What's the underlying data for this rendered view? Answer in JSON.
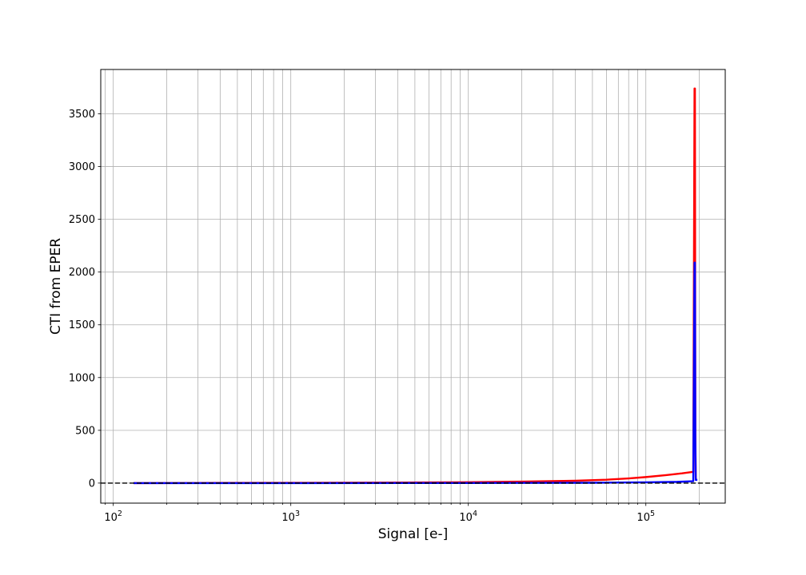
{
  "chart_data": {
    "type": "line",
    "title": "",
    "xlabel": "Signal [e-]",
    "ylabel": "CTI from EPER",
    "xscale": "log",
    "xlim": [
      85,
      280000
    ],
    "ylim": [
      -190,
      3920
    ],
    "grid": true,
    "grid_minor_x": true,
    "legend": "none",
    "x_major_ticks": [
      100,
      1000,
      10000,
      100000
    ],
    "x_tick_labels": [
      {
        "base": "10",
        "exp": "2"
      },
      {
        "base": "10",
        "exp": "3"
      },
      {
        "base": "10",
        "exp": "4"
      },
      {
        "base": "10",
        "exp": "5"
      }
    ],
    "y_ticks": [
      0,
      500,
      1000,
      1500,
      2000,
      2500,
      3000,
      3500
    ],
    "y_tick_labels": [
      "0",
      "500",
      "1000",
      "1500",
      "2000",
      "2500",
      "3000",
      "3500"
    ],
    "reference_line": {
      "y": 0,
      "style": "dashed",
      "color": "#000000"
    },
    "series": [
      {
        "color": "#ff0000",
        "x": [
          130,
          300,
          1000,
          3000,
          10000,
          20000,
          40000,
          60000,
          80000,
          100000,
          130000,
          160000,
          185000,
          188000,
          188500,
          189000,
          190000,
          191000,
          192000
        ],
        "y": [
          0,
          1,
          2,
          4,
          8,
          14,
          22,
          32,
          44,
          57,
          75,
          92,
          107,
          3740,
          3740,
          3740,
          500,
          50,
          30
        ]
      },
      {
        "color": "#0000ff",
        "x": [
          130,
          1000,
          10000,
          50000,
          100000,
          150000,
          185000,
          188000,
          188500,
          189000,
          190000,
          191000,
          192000,
          193000,
          194000,
          195000
        ],
        "y": [
          0,
          0,
          1,
          3,
          7,
          12,
          18,
          2090,
          2090,
          2090,
          400,
          30,
          30,
          30,
          30,
          30
        ]
      }
    ]
  }
}
